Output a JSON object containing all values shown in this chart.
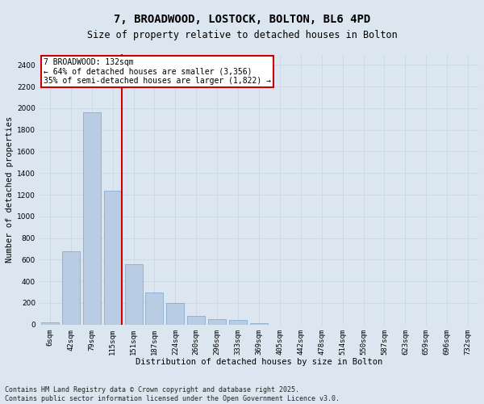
{
  "title": "7, BROADWOOD, LOSTOCK, BOLTON, BL6 4PD",
  "subtitle": "Size of property relative to detached houses in Bolton",
  "xlabel": "Distribution of detached houses by size in Bolton",
  "ylabel": "Number of detached properties",
  "categories": [
    "6sqm",
    "42sqm",
    "79sqm",
    "115sqm",
    "151sqm",
    "187sqm",
    "224sqm",
    "260sqm",
    "296sqm",
    "333sqm",
    "369sqm",
    "405sqm",
    "442sqm",
    "478sqm",
    "514sqm",
    "550sqm",
    "587sqm",
    "623sqm",
    "659sqm",
    "696sqm",
    "732sqm"
  ],
  "values": [
    20,
    680,
    1960,
    1240,
    560,
    300,
    200,
    80,
    50,
    40,
    10,
    0,
    0,
    0,
    0,
    0,
    0,
    0,
    0,
    0,
    0
  ],
  "bar_color": "#b8cce4",
  "bar_edge_color": "#7aa3c8",
  "vline_color": "#cc0000",
  "annotation_text": "7 BROADWOOD: 132sqm\n← 64% of detached houses are smaller (3,356)\n35% of semi-detached houses are larger (1,822) →",
  "annotation_box_facecolor": "#ffffff",
  "annotation_box_edgecolor": "#cc0000",
  "footer_text": "Contains HM Land Registry data © Crown copyright and database right 2025.\nContains public sector information licensed under the Open Government Licence v3.0.",
  "ylim": [
    0,
    2500
  ],
  "yticks": [
    0,
    200,
    400,
    600,
    800,
    1000,
    1200,
    1400,
    1600,
    1800,
    2000,
    2200,
    2400
  ],
  "grid_color": "#c8d8e8",
  "background_color": "#dce6f1",
  "title_fontsize": 10,
  "subtitle_fontsize": 8.5,
  "axis_label_fontsize": 7.5,
  "tick_fontsize": 6.5,
  "annotation_fontsize": 7,
  "footer_fontsize": 6
}
